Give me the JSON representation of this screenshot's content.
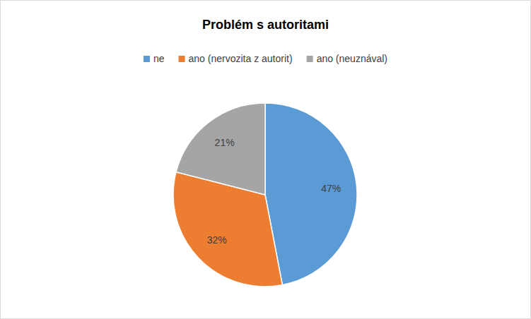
{
  "chart_data": {
    "type": "pie",
    "title": "Problém s autoritami",
    "categories": [
      "ne",
      "ano (nervozita z autorit)",
      "ano (neuznával)"
    ],
    "values": [
      47,
      32,
      21
    ],
    "value_labels": [
      "47%",
      "32%",
      "21%"
    ],
    "colors": [
      "#5b9bd5",
      "#ed7d31",
      "#a5a5a5"
    ],
    "data_labels": true,
    "legend": "top"
  }
}
